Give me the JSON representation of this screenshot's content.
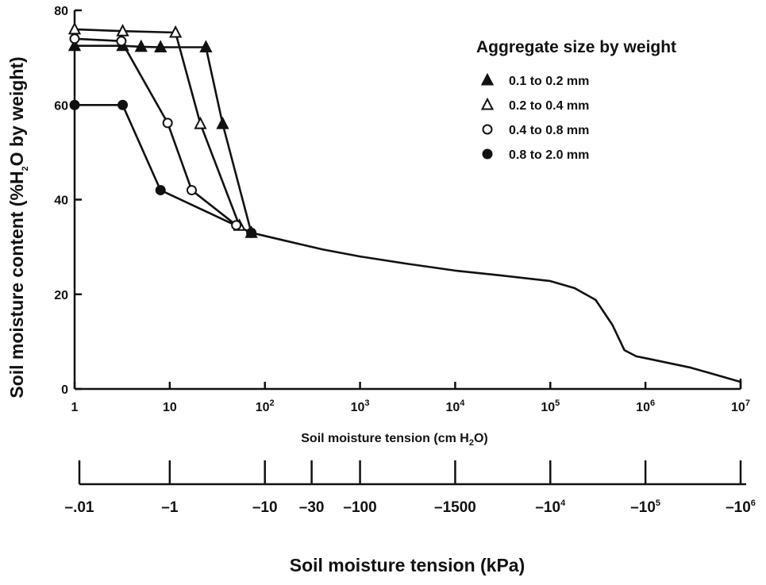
{
  "chart_data": {
    "type": "line",
    "y_axis": {
      "label_parts": [
        "Soil moisture content (%H",
        "2",
        "O by weight)"
      ],
      "ticks": [
        "0",
        "20",
        "40",
        "60",
        "80"
      ],
      "tick_values": [
        0,
        20,
        40,
        60,
        80
      ],
      "ylim": [
        0,
        80
      ]
    },
    "x_axis": {
      "label_parts": [
        "Soil moisture tension (cm H",
        "2",
        "O)"
      ],
      "scale": "log",
      "xlim": [
        1,
        10000000
      ],
      "tick_values": [
        1,
        10,
        100,
        1000,
        10000,
        100000,
        1000000,
        10000000
      ],
      "ticks": [
        {
          "base": "1",
          "exp": ""
        },
        {
          "base": "10",
          "exp": ""
        },
        {
          "base": "10",
          "exp": "2"
        },
        {
          "base": "10",
          "exp": "3"
        },
        {
          "base": "10",
          "exp": "4"
        },
        {
          "base": "10",
          "exp": "5"
        },
        {
          "base": "10",
          "exp": "6"
        },
        {
          "base": "10",
          "exp": "7"
        }
      ]
    },
    "secondary_x_axis": {
      "label": "Soil moisture tension (kPa)",
      "ticks": [
        {
          "base": "–.01",
          "exp": "",
          "cm": 1
        },
        {
          "base": "–1",
          "exp": "",
          "cm": 10
        },
        {
          "base": "–10",
          "exp": "",
          "cm": 100
        },
        {
          "base": "–30",
          "exp": "",
          "cm": 310
        },
        {
          "base": "–100",
          "exp": "",
          "cm": 1000
        },
        {
          "base": "–1500",
          "exp": "",
          "cm": 10000
        },
        {
          "base": "–10",
          "exp": "4",
          "cm": 100000
        },
        {
          "base": "–10",
          "exp": "5",
          "cm": 1000000
        },
        {
          "base": "–10",
          "exp": "6",
          "cm": 10000000
        }
      ]
    },
    "legend": {
      "title": "Aggregate size by weight",
      "placement": "top-right"
    },
    "series": [
      {
        "name": "0.1 to 0.2 mm",
        "marker": "filled-triangle",
        "x": [
          1,
          3.2,
          5,
          8,
          24,
          36,
          72
        ],
        "y": [
          72.5,
          72.5,
          72.3,
          72.2,
          72.2,
          56,
          33
        ]
      },
      {
        "name": "0.2 to 0.4 mm",
        "marker": "open-triangle",
        "x": [
          1,
          3.2,
          11.5,
          21,
          54
        ],
        "y": [
          76,
          75.6,
          75.3,
          56,
          34.5
        ]
      },
      {
        "name": "0.4 to 0.8 mm",
        "marker": "open-circle",
        "x": [
          1,
          3.1,
          9.5,
          17,
          50
        ],
        "y": [
          74,
          73.5,
          56.2,
          42,
          34.6
        ]
      },
      {
        "name": "0.8 to 2.0 mm",
        "marker": "filled-circle",
        "x": [
          1,
          3.2,
          8,
          72
        ],
        "y": [
          60,
          60,
          42,
          33
        ]
      }
    ],
    "shared_curve": {
      "x": [
        72,
        150,
        400,
        1000,
        3000,
        10000,
        30000,
        100000,
        180000,
        300000,
        450000,
        600000,
        800000,
        1000000,
        3000000,
        10000000
      ],
      "y": [
        33,
        31.5,
        29.5,
        28,
        26.5,
        25,
        24,
        22.8,
        21.3,
        18.8,
        13.5,
        8.2,
        6.9,
        6.5,
        4.5,
        1.5
      ]
    },
    "grid": false
  },
  "colors": {
    "ink": "#111111",
    "background": "#ffffff"
  }
}
